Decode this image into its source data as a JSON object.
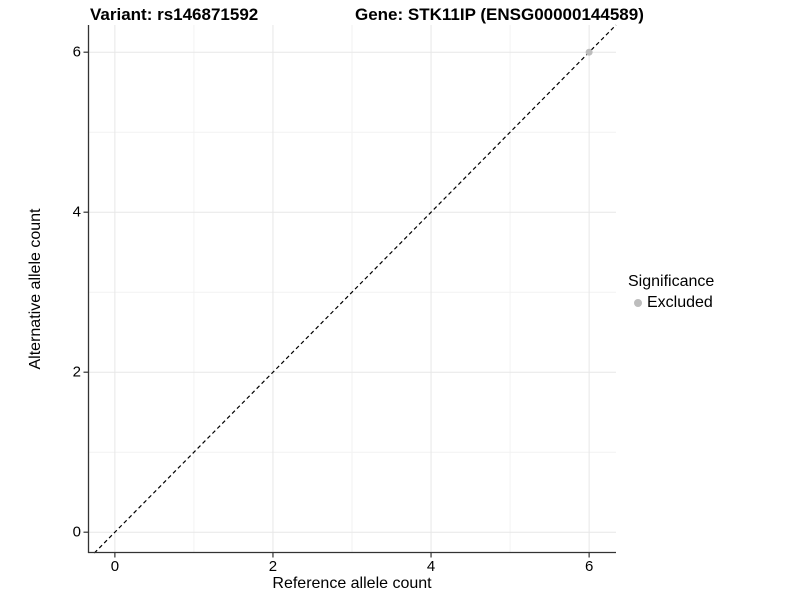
{
  "chart_data": {
    "type": "scatter",
    "titles": {
      "left": "Variant: rs146871592",
      "right": "Gene: STK11IP (ENSG00000144589)"
    },
    "xlabel": "Reference allele count",
    "ylabel": "Alternative allele count",
    "xlim": [
      -0.34,
      6.34
    ],
    "ylim": [
      -0.26,
      6.34
    ],
    "xticks": [
      0,
      2,
      4,
      6
    ],
    "yticks": [
      0,
      2,
      4,
      6
    ],
    "xminor": [
      1,
      3,
      5
    ],
    "yminor": [
      1,
      3,
      5
    ],
    "grid": "major and minor gridlines on white background",
    "legend": {
      "title": "Significance",
      "position": "right",
      "items": [
        {
          "label": "Excluded",
          "color": "#bdbdbd"
        }
      ]
    },
    "series": [
      {
        "name": "Excluded",
        "color": "#bdbdbd",
        "points": [
          [
            6,
            6
          ]
        ]
      }
    ],
    "reference_line": {
      "equation": "y = x",
      "style": "dashed",
      "color": "#000000"
    }
  },
  "style": {
    "background": "#ffffff",
    "grid_major": "#e7e7e7",
    "grid_minor": "#f2f2f2",
    "axis_line": "#333333",
    "tick_color": "#333333",
    "text_color": "#000000"
  }
}
